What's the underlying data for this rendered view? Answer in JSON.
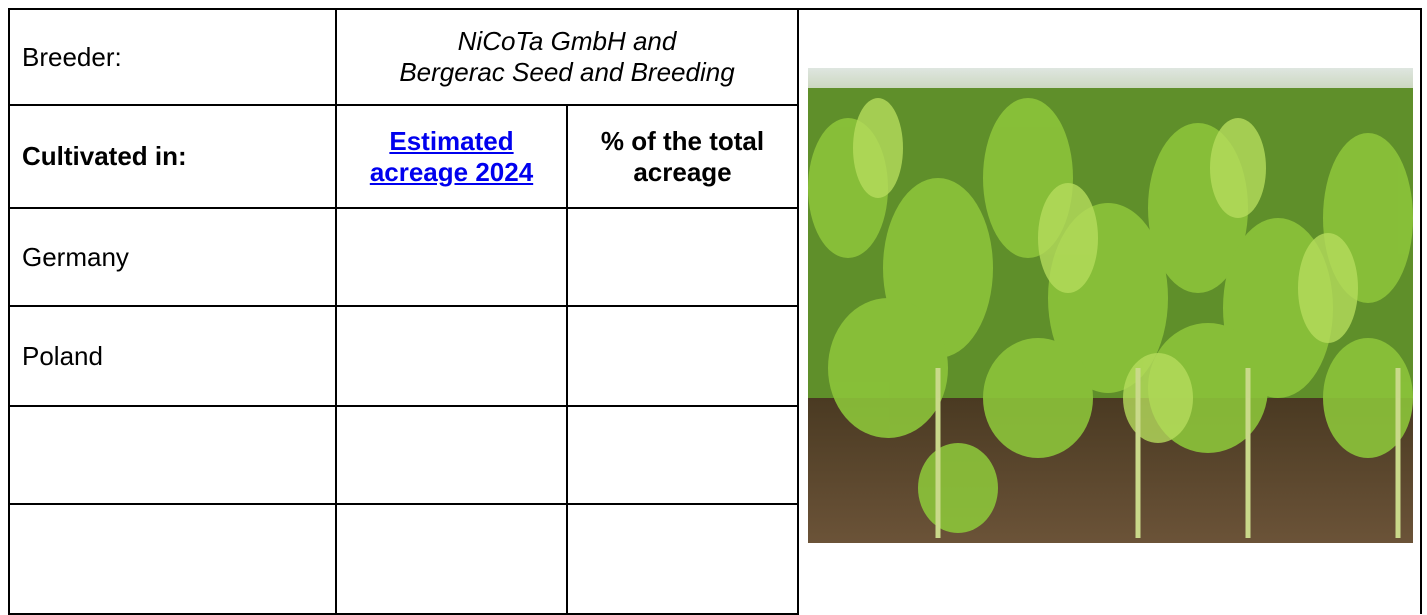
{
  "breeder": {
    "label": "Breeder:",
    "value": [
      "NiCoTa GmbH and",
      "Bergerac Seed and Breeding"
    ]
  },
  "header": {
    "label": "Cultivated in:",
    "estimated": [
      "Estimated",
      "acreage 2024"
    ],
    "share": [
      "% of the total",
      "acreage"
    ]
  },
  "rows": [
    "Germany",
    "Poland"
  ]
}
